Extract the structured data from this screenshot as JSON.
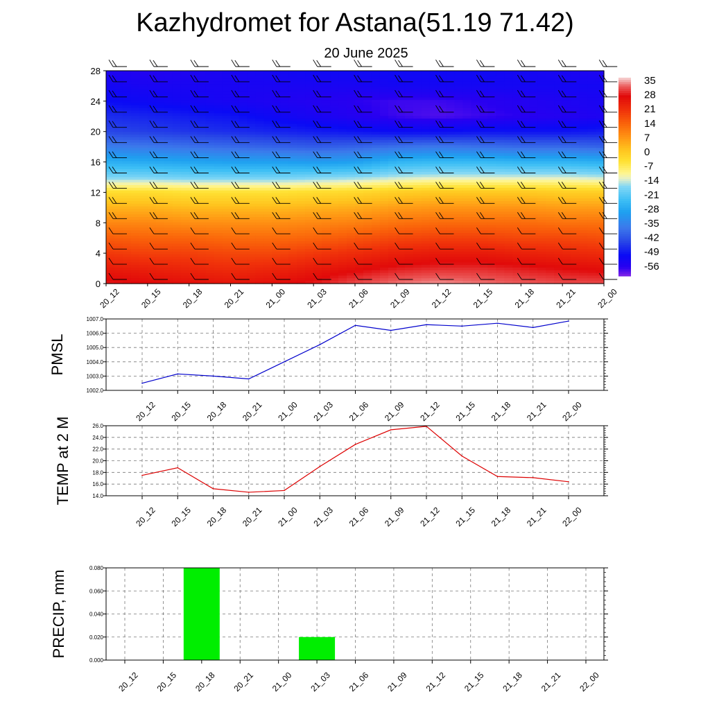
{
  "header": {
    "title": "Kazhydromet for Astana(51.19 71.42)",
    "subtitle": "20 June 2025"
  },
  "colors": {
    "pmsl_line": "#0000cc",
    "temp_line": "#dd0000",
    "precip_bar": "#00ee00",
    "warm_max": "#e00000",
    "cold_max": "#0a0af0",
    "freeze": "#ffee66"
  },
  "chart_data": [
    {
      "type": "heatmap",
      "title": "",
      "xlabel": "",
      "ylabel": "",
      "x": [
        "20_12",
        "20_15",
        "20_18",
        "20_21",
        "21_00",
        "21_03",
        "21_06",
        "21_09",
        "21_12",
        "21_15",
        "21_18",
        "21_21",
        "22_00"
      ],
      "y_ticks": [
        0,
        4,
        8,
        12,
        16,
        20,
        24,
        28
      ],
      "ylim": [
        0,
        28
      ],
      "colorbar": {
        "labels": [
          "35",
          "28",
          "21",
          "14",
          "7",
          "0",
          "-7",
          "-14",
          "-21",
          "-28",
          "-35",
          "-42",
          "-49",
          "-56"
        ],
        "range": [
          -63,
          38
        ]
      },
      "levels": [
        0,
        2,
        4,
        6,
        8,
        10,
        12,
        14,
        16,
        18,
        20,
        22,
        24,
        26,
        28
      ],
      "values": [
        [
          30,
          29,
          28,
          27,
          28,
          30,
          33,
          35,
          36,
          35,
          34,
          33,
          33
        ],
        [
          26,
          25,
          24,
          23,
          24,
          26,
          28,
          30,
          31,
          31,
          30,
          29,
          28
        ],
        [
          21,
          20,
          20,
          19,
          19,
          21,
          23,
          25,
          26,
          26,
          25,
          24,
          23
        ],
        [
          16,
          15,
          15,
          14,
          14,
          15,
          17,
          19,
          20,
          20,
          19,
          19,
          18
        ],
        [
          10,
          10,
          9,
          9,
          9,
          10,
          11,
          13,
          14,
          14,
          14,
          13,
          13
        ],
        [
          4,
          4,
          3,
          3,
          3,
          4,
          5,
          7,
          8,
          8,
          8,
          7,
          7
        ],
        [
          -3,
          -3,
          -4,
          -4,
          -4,
          -3,
          -2,
          0,
          1,
          1,
          1,
          0,
          0
        ],
        [
          -18,
          -18,
          -19,
          -19,
          -19,
          -18,
          -17,
          -15,
          -14,
          -14,
          -14,
          -14,
          -15
        ],
        [
          -27,
          -28,
          -29,
          -30,
          -30,
          -31,
          -30,
          -26,
          -25,
          -25,
          -26,
          -26,
          -27
        ],
        [
          -37,
          -38,
          -39,
          -40,
          -41,
          -42,
          -41,
          -39,
          -38,
          -39,
          -40,
          -40,
          -41
        ],
        [
          -45,
          -46,
          -47,
          -48,
          -49,
          -50,
          -51,
          -52,
          -52,
          -51,
          -51,
          -51,
          -50
        ],
        [
          -48,
          -49,
          -50,
          -51,
          -53,
          -55,
          -57,
          -59,
          -60,
          -59,
          -58,
          -57,
          -56
        ],
        [
          -52,
          -53,
          -54,
          -55,
          -56,
          -57,
          -58,
          -59,
          -59,
          -58,
          -57,
          -56,
          -55
        ],
        [
          -54,
          -55,
          -55,
          -55,
          -55,
          -55,
          -55,
          -54,
          -54,
          -54,
          -54,
          -54,
          -54
        ],
        [
          -56,
          -57,
          -56,
          -55,
          -54,
          -53,
          -53,
          -53,
          -53,
          -53,
          -54,
          -55,
          -56
        ]
      ]
    },
    {
      "type": "line",
      "title": "",
      "ylabel": "PMSL",
      "x": [
        "20_12",
        "20_15",
        "20_18",
        "20_21",
        "21_00",
        "21_03",
        "21_06",
        "21_09",
        "21_12",
        "21_15",
        "21_18",
        "21_21",
        "22_00"
      ],
      "series": [
        {
          "values": [
            1002.5,
            1003.15,
            1003.0,
            1002.8,
            1004.0,
            1005.2,
            1006.55,
            1006.2,
            1006.6,
            1006.5,
            1006.7,
            1006.4,
            1006.85
          ]
        }
      ],
      "ylim": [
        1002.0,
        1007.0
      ],
      "y_ticks": [
        "1002.0",
        "1003.0",
        "1004.0",
        "1005.0",
        "1006.0",
        "1007.0"
      ],
      "grid": true
    },
    {
      "type": "line",
      "title": "",
      "ylabel": "TEMP at 2 M",
      "x": [
        "20_12",
        "20_15",
        "20_18",
        "20_21",
        "21_00",
        "21_03",
        "21_06",
        "21_09",
        "21_12",
        "21_15",
        "21_18",
        "21_21",
        "22_00"
      ],
      "series": [
        {
          "values": [
            17.5,
            18.8,
            15.2,
            14.6,
            14.9,
            19.0,
            22.8,
            25.3,
            25.9,
            20.8,
            17.3,
            17.1,
            16.4
          ]
        }
      ],
      "ylim": [
        14.0,
        26.0
      ],
      "y_ticks": [
        "14.0",
        "16.0",
        "18.0",
        "20.0",
        "22.0",
        "24.0",
        "26.0"
      ],
      "grid": true
    },
    {
      "type": "bar",
      "title": "",
      "ylabel": "PRECIP, mm",
      "categories": [
        "20_12",
        "20_15",
        "20_18",
        "20_21",
        "21_00",
        "21_03",
        "21_06",
        "21_09",
        "21_12",
        "21_15",
        "21_18",
        "21_21",
        "22_00"
      ],
      "values": [
        0,
        0,
        0.08,
        0,
        0,
        0.02,
        0,
        0,
        0,
        0,
        0,
        0,
        0
      ],
      "ylim": [
        0.0,
        0.08
      ],
      "y_ticks": [
        "0.000",
        "0.020",
        "0.040",
        "0.060",
        "0.080"
      ],
      "grid": true
    }
  ]
}
